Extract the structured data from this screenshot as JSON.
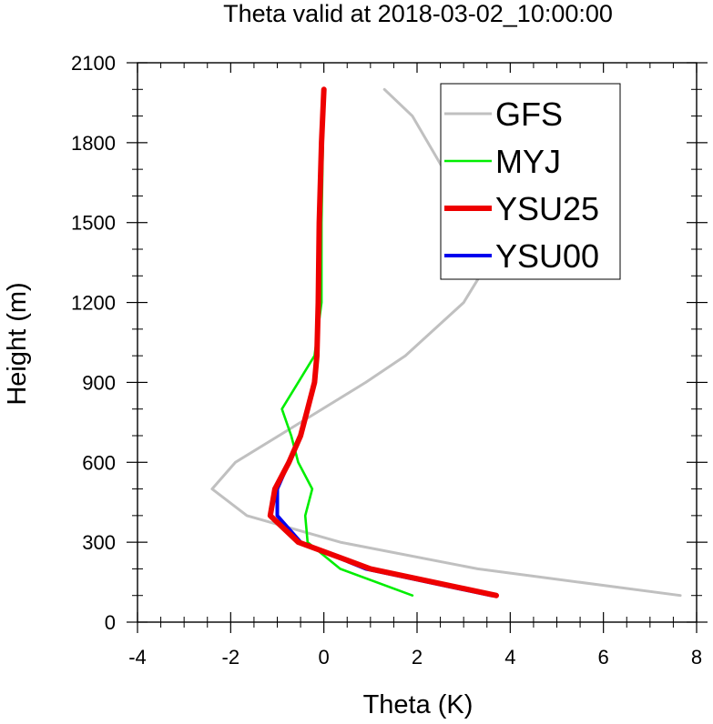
{
  "chart_data": {
    "type": "line",
    "title": "Theta valid at 2018-03-02_10:00:00",
    "xlabel": "Theta (K)",
    "ylabel": "Height (m)",
    "xlim": [
      -4,
      8
    ],
    "ylim": [
      0,
      2100
    ],
    "xticks": [
      -4,
      -2,
      0,
      2,
      4,
      6,
      8
    ],
    "yticks": [
      0,
      300,
      600,
      900,
      1200,
      1500,
      1800,
      2100
    ],
    "grid": false,
    "legend": "top-right",
    "series": [
      {
        "name": "GFS",
        "color": "#c0c0c0",
        "x": [
          7.65,
          3.3,
          0.35,
          -1.65,
          -2.4,
          -1.9,
          -0.5,
          0.9,
          1.75,
          3.0,
          3.35,
          3.3,
          3.15,
          2.9,
          1.9,
          1.3
        ],
        "y": [
          100,
          200,
          300,
          400,
          500,
          600,
          750,
          900,
          1000,
          1200,
          1300,
          1400,
          1500,
          1600,
          1900,
          2000
        ]
      },
      {
        "name": "MYJ",
        "color": "#00ee00",
        "x": [
          1.9,
          0.35,
          -0.35,
          -0.4,
          -0.25,
          -0.55,
          -0.7,
          -0.9,
          -0.55,
          -0.2,
          -0.05,
          -0.05,
          0.0
        ],
        "y": [
          100,
          200,
          300,
          400,
          500,
          600,
          700,
          800,
          900,
          1000,
          1200,
          1500,
          2000
        ]
      },
      {
        "name": "YSU25",
        "color": "#ee0000",
        "x": [
          3.7,
          1.0,
          -0.55,
          -1.15,
          -1.05,
          -0.75,
          -0.5,
          -0.35,
          -0.2,
          -0.15,
          -0.12,
          -0.1,
          -0.05,
          0.0
        ],
        "y": [
          100,
          200,
          300,
          400,
          500,
          600,
          700,
          800,
          900,
          1000,
          1200,
          1500,
          1800,
          2000
        ]
      },
      {
        "name": "YSU00",
        "color": "#0000ee",
        "x": [
          3.6,
          0.9,
          -0.5,
          -1.0,
          -1.0,
          -0.75,
          -0.5,
          -0.35,
          -0.2,
          -0.15,
          -0.12,
          -0.1,
          -0.05,
          0.0
        ],
        "y": [
          100,
          200,
          300,
          400,
          500,
          600,
          700,
          800,
          900,
          1000,
          1200,
          1500,
          1800,
          2000
        ]
      }
    ]
  }
}
